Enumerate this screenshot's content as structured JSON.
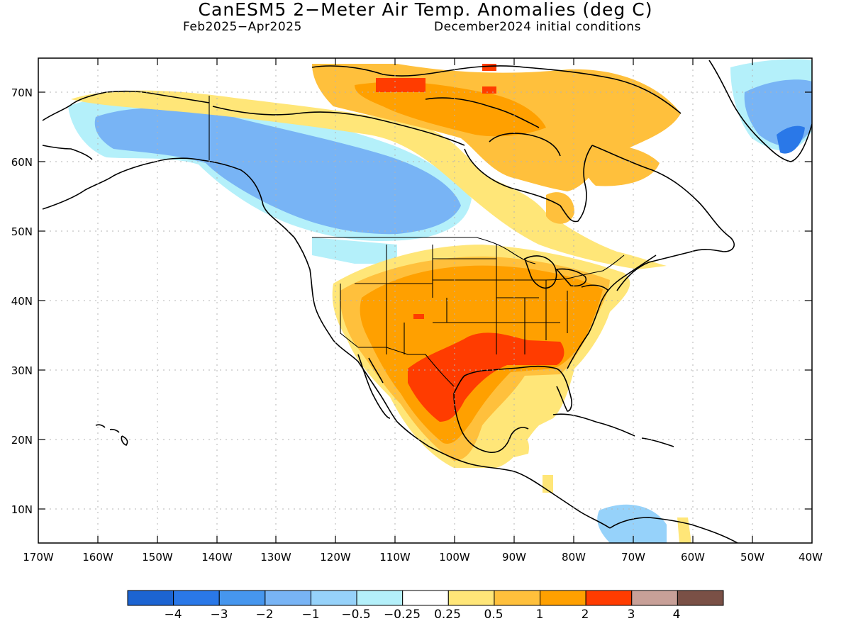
{
  "title": "CanESM5 2−Meter Air Temp. Anomalies (deg C)",
  "subtitle_left": "Feb2025−Apr2025",
  "subtitle_right": "December2024 initial conditions",
  "lat_labels": [
    "70N",
    "60N",
    "50N",
    "40N",
    "30N",
    "20N",
    "10N"
  ],
  "lon_labels": [
    "170W",
    "160W",
    "150W",
    "140W",
    "130W",
    "120W",
    "110W",
    "100W",
    "90W",
    "80W",
    "70W",
    "60W",
    "50W",
    "40W"
  ],
  "legend": {
    "colors": [
      "#1c64d2",
      "#2a78e8",
      "#4696ee",
      "#78b4f5",
      "#96d2fa",
      "#b4f0fa",
      "#ffffff",
      "#ffe678",
      "#ffc03c",
      "#ffa000",
      "#ff3c00",
      "#c8a098",
      "#7a5046"
    ],
    "labels": [
      "−4",
      "−3",
      "−2",
      "−1",
      "−0.5",
      "−0.25",
      "0.25",
      "0.5",
      "1",
      "2",
      "3",
      "4"
    ]
  },
  "map": {
    "lon_range": [
      -170,
      -40
    ],
    "lat_range": [
      5,
      75
    ]
  }
}
